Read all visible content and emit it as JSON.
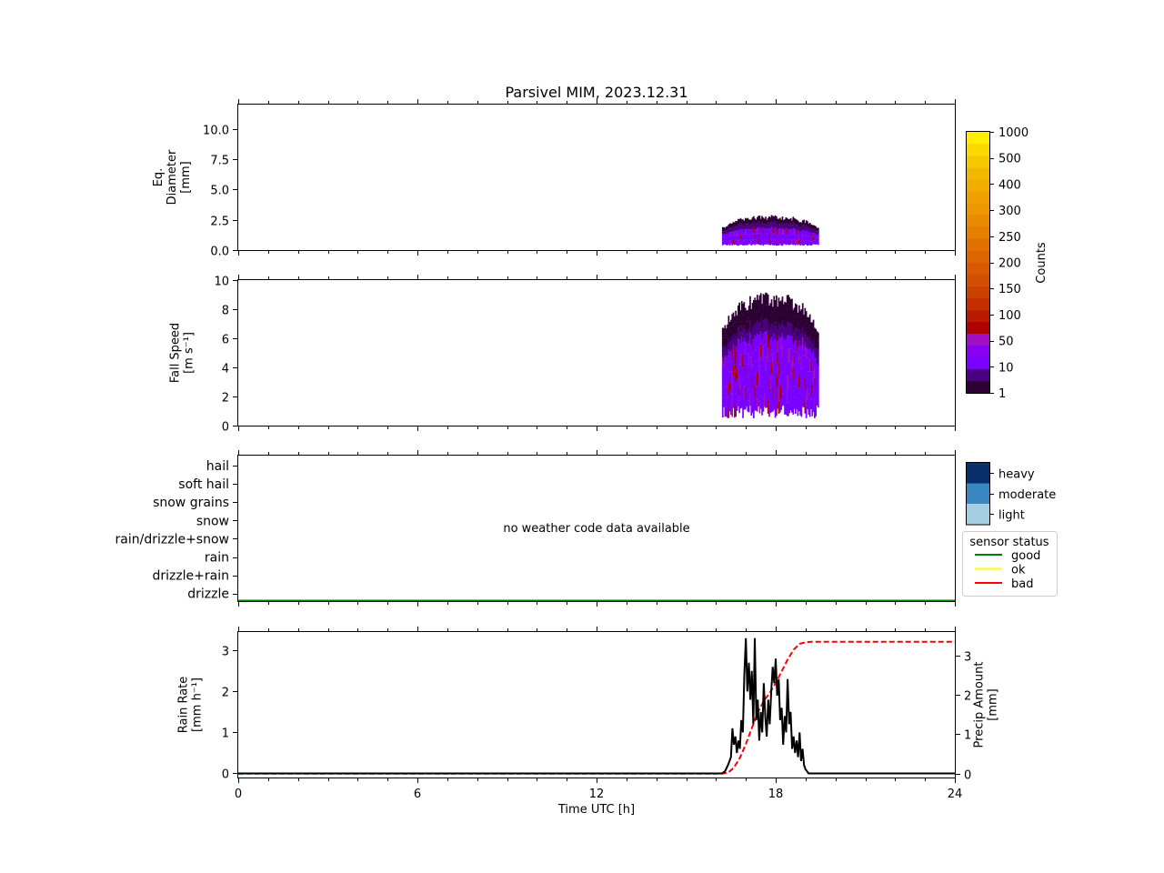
{
  "figure": {
    "title": "Parsivel MIM, 2023.12.31",
    "xlabel": "Time UTC [h]",
    "xticks": [
      0,
      6,
      12,
      18,
      24
    ],
    "xlim": [
      0,
      24
    ]
  },
  "colors": {
    "sensor_good": "#008000",
    "sensor_ok": "#ffff00",
    "sensor_bad": "#ff0000",
    "rain_rate_line": "#000000",
    "precip_line": "#ff0000",
    "counts_cmap": [
      "#2d0033",
      "#4a0080",
      "#7a00ff",
      "#8800f0",
      "#a010c0",
      "#b00000",
      "#bc1a00",
      "#c42e00",
      "#cc4000",
      "#d24e00",
      "#d85a00",
      "#de6600",
      "#e27200",
      "#e67e00",
      "#ea8a00",
      "#ec9600",
      "#eea000",
      "#f0ac00",
      "#f2b800",
      "#f6c800",
      "#fad800",
      "#ffee00"
    ],
    "intensity_light": "#a6cee3",
    "intensity_moderate": "#3a86c0",
    "intensity_heavy": "#08306b"
  },
  "chart_data": [
    {
      "type": "heatmap",
      "panel": "diameter",
      "ylabel_lines": [
        "Eq.",
        "Diameter",
        "[mm]"
      ],
      "ylim": [
        0,
        12
      ],
      "yticks": [
        "0.0",
        "2.5",
        "5.0",
        "7.5",
        "10.0"
      ],
      "ytick_values": [
        0,
        2.5,
        5,
        7.5,
        10
      ],
      "time_range": [
        16.2,
        19.4
      ],
      "diameter_range": [
        0.3,
        3.0
      ]
    },
    {
      "type": "heatmap",
      "panel": "fall_speed",
      "ylabel_lines": [
        "Fall Speed",
        "[m s⁻¹]"
      ],
      "ylim": [
        0,
        10
      ],
      "yticks": [
        "0",
        "2",
        "4",
        "6",
        "8",
        "10"
      ],
      "ytick_values": [
        0,
        2,
        4,
        6,
        8,
        10
      ],
      "time_range": [
        16.2,
        19.4
      ],
      "speed_range": [
        0.3,
        10
      ]
    },
    {
      "type": "table",
      "panel": "weather_code",
      "categories": [
        "hail",
        "soft hail",
        "snow grains",
        "snow",
        "rain/drizzle+snow",
        "rain",
        "drizzle+rain",
        "drizzle"
      ],
      "message": "no weather code data available",
      "sensor_status_series": "good"
    },
    {
      "type": "line",
      "panel": "rain",
      "ylabel_lines": [
        "Rain Rate",
        "[mm h⁻¹]"
      ],
      "y2label_lines": [
        "Precip Amount",
        "[mm]"
      ],
      "ylim": [
        -0.1,
        3.45
      ],
      "yticks": [
        "0",
        "1",
        "2",
        "3"
      ],
      "ytick_values": [
        0,
        1,
        2,
        3
      ],
      "y2lim": [
        -0.1,
        3.6
      ],
      "y2ticks": [
        "0",
        "1",
        "2",
        "3"
      ],
      "y2tick_values": [
        0,
        1,
        2,
        3
      ],
      "series": [
        {
          "axis": "left",
          "style": "solid",
          "x": [
            0,
            16.2,
            16.3,
            16.4,
            16.5,
            16.55,
            16.6,
            16.65,
            16.7,
            16.75,
            16.8,
            16.85,
            16.9,
            16.95,
            17.0,
            17.05,
            17.1,
            17.15,
            17.2,
            17.25,
            17.3,
            17.35,
            17.4,
            17.45,
            17.5,
            17.55,
            17.6,
            17.65,
            17.7,
            17.75,
            17.8,
            17.85,
            17.9,
            17.95,
            18.0,
            18.05,
            18.1,
            18.15,
            18.2,
            18.25,
            18.3,
            18.35,
            18.4,
            18.45,
            18.5,
            18.55,
            18.6,
            18.65,
            18.7,
            18.75,
            18.8,
            18.85,
            18.9,
            18.95,
            19.0,
            19.05,
            19.1,
            19.2,
            19.3,
            19.4,
            24
          ],
          "y": [
            0,
            0,
            0.05,
            0.2,
            0.4,
            1.1,
            0.7,
            0.9,
            0.5,
            0.8,
            0.6,
            1.3,
            1.0,
            2.4,
            3.3,
            2.0,
            2.7,
            1.8,
            2.5,
            1.2,
            3.3,
            1.3,
            1.8,
            0.8,
            1.5,
            1.0,
            2.2,
            1.4,
            0.9,
            1.8,
            1.2,
            2.0,
            2.6,
            2.2,
            2.8,
            1.9,
            2.3,
            1.3,
            1.6,
            0.7,
            1.4,
            1.0,
            2.3,
            1.2,
            1.5,
            0.6,
            0.9,
            0.5,
            0.8,
            0.4,
            1.0,
            0.3,
            0.6,
            0.2,
            0.1,
            0.05,
            0,
            0,
            0,
            0,
            0
          ]
        },
        {
          "axis": "right",
          "style": "dashed",
          "x": [
            0,
            16.2,
            16.4,
            16.6,
            16.8,
            17.0,
            17.2,
            17.4,
            17.6,
            17.8,
            18.0,
            18.2,
            18.4,
            18.6,
            18.8,
            19.0,
            19.2,
            19.4,
            24
          ],
          "y": [
            0,
            0,
            0.02,
            0.15,
            0.4,
            0.75,
            1.15,
            1.55,
            1.85,
            2.05,
            2.3,
            2.6,
            2.9,
            3.15,
            3.3,
            3.34,
            3.35,
            3.35,
            3.35
          ]
        }
      ]
    }
  ],
  "colorbars": {
    "counts": {
      "label": "Counts",
      "ticks": [
        "1",
        "10",
        "50",
        "100",
        "150",
        "200",
        "250",
        "300",
        "400",
        "500",
        "1000"
      ]
    },
    "intensity": {
      "labels": [
        "heavy",
        "moderate",
        "light"
      ]
    }
  },
  "legend": {
    "title": "sensor status",
    "items": [
      {
        "label": "good",
        "color": "#008000"
      },
      {
        "label": "ok",
        "color": "#ffff00"
      },
      {
        "label": "bad",
        "color": "#ff0000"
      }
    ]
  }
}
